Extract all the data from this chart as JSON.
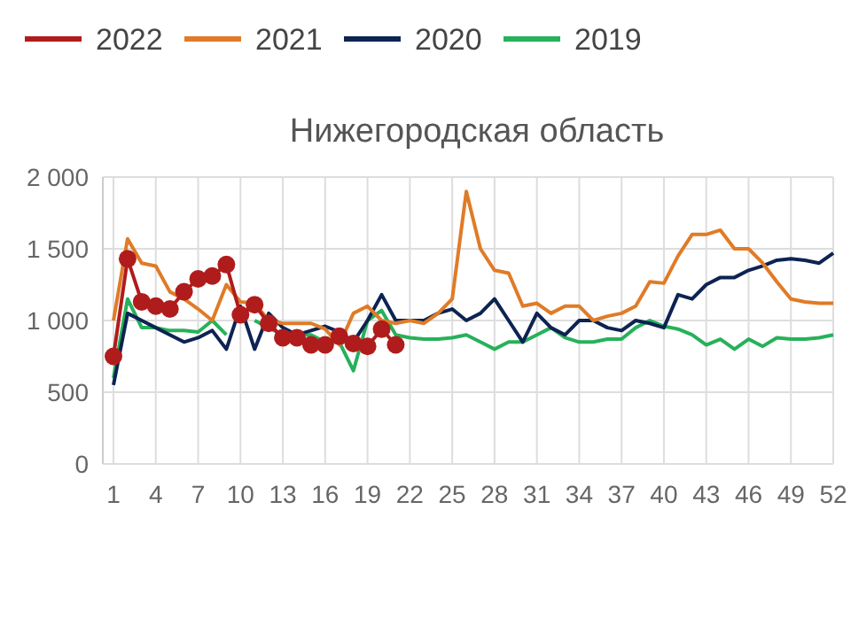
{
  "chart_data": {
    "type": "line",
    "title": "Нижегородская область",
    "categories": [
      "1",
      null,
      null,
      "4",
      null,
      null,
      "7",
      null,
      null,
      "10",
      null,
      null,
      "13",
      null,
      null,
      "16",
      null,
      null,
      "19",
      null,
      null,
      "22",
      null,
      null,
      "25",
      null,
      null,
      "28",
      null,
      null,
      "31",
      null,
      null,
      "34",
      null,
      null,
      "37",
      null,
      null,
      "40",
      null,
      null,
      "43",
      null,
      null,
      "46",
      null,
      null,
      "49",
      null,
      null,
      "52"
    ],
    "ylim": [
      0,
      2000
    ],
    "yticks": [
      0,
      {
        "value": 500,
        "label": "500"
      },
      {
        "value": 1000,
        "label": "1 000"
      },
      {
        "value": 1500,
        "label": "1 500"
      },
      {
        "value": 2000,
        "label": "2 000"
      }
    ],
    "grid": true,
    "legend": "top",
    "line_style": "solid",
    "series": [
      {
        "name": "2022",
        "color": "#b01c1c",
        "marker": "circle",
        "values": [
          750,
          1430,
          1130,
          1100,
          1080,
          1200,
          1290,
          1310,
          1390,
          1040,
          1110,
          980,
          880,
          880,
          830,
          830,
          890,
          840,
          820,
          940,
          830,
          null,
          null,
          null,
          null,
          null,
          null,
          null,
          null,
          null,
          null,
          null,
          null,
          null,
          null,
          null,
          null,
          null,
          null,
          null,
          null,
          null,
          null,
          null,
          null,
          null,
          null,
          null,
          null,
          null,
          null,
          null
        ]
      },
      {
        "name": "2021",
        "color": "#e07b27",
        "marker": "none",
        "values": [
          1000,
          1570,
          1400,
          1380,
          1200,
          1150,
          1080,
          1000,
          1250,
          1130,
          1120,
          1000,
          980,
          980,
          980,
          940,
          830,
          1050,
          1100,
          1000,
          980,
          1000,
          980,
          1050,
          1150,
          1900,
          1500,
          1350,
          1330,
          1100,
          1120,
          1050,
          1100,
          1100,
          1000,
          1030,
          1050,
          1100,
          1270,
          1260,
          1450,
          1600,
          1600,
          1630,
          1500,
          1500,
          1400,
          1270,
          1150,
          1130,
          1120,
          1120
        ]
      },
      {
        "name": "2020",
        "color": "#0d2352",
        "marker": "none",
        "values": [
          550,
          1050,
          1000,
          950,
          900,
          850,
          880,
          930,
          800,
          1100,
          800,
          1050,
          950,
          900,
          930,
          960,
          920,
          850,
          1000,
          1180,
          1000,
          1000,
          1000,
          1050,
          1080,
          1000,
          1050,
          1150,
          1000,
          850,
          1050,
          950,
          900,
          1000,
          1000,
          950,
          930,
          1000,
          980,
          950,
          1180,
          1150,
          1250,
          1300,
          1300,
          1350,
          1380,
          1420,
          1430,
          1420,
          1400,
          1470
        ]
      },
      {
        "name": "2019",
        "color": "#27b15a",
        "marker": "none",
        "values": [
          600,
          1150,
          950,
          950,
          930,
          930,
          920,
          1000,
          900,
          null,
          1000,
          950,
          900,
          900,
          900,
          850,
          850,
          650,
          1000,
          1070,
          900,
          880,
          870,
          870,
          880,
          900,
          850,
          800,
          850,
          850,
          900,
          950,
          880,
          850,
          850,
          870,
          870,
          950,
          1000,
          960,
          940,
          900,
          830,
          870,
          800,
          870,
          820,
          880,
          870,
          870,
          880,
          900
        ]
      }
    ]
  }
}
